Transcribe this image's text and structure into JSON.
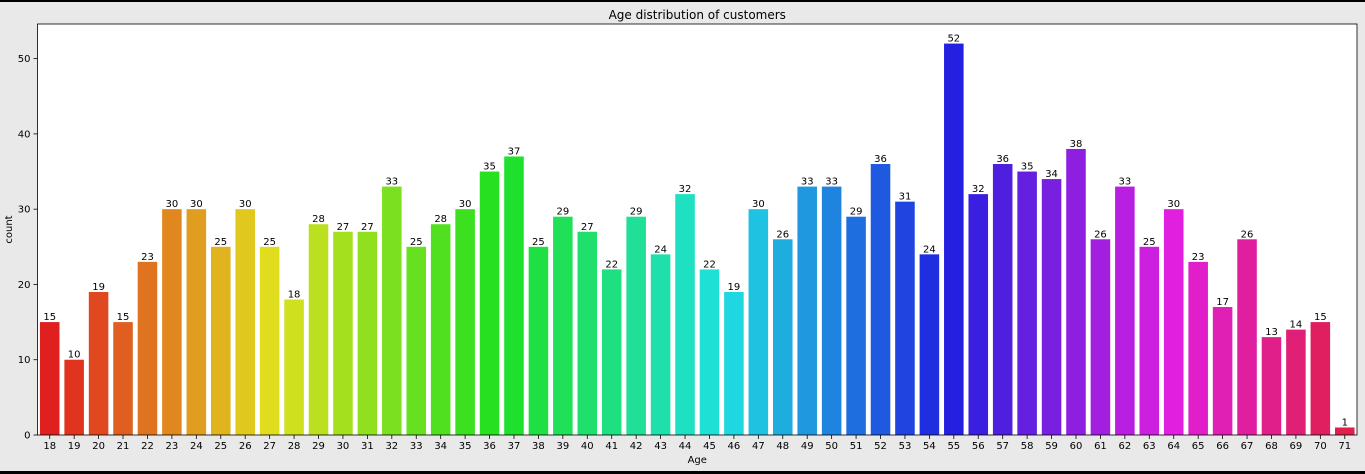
{
  "chart_data": {
    "type": "bar",
    "title": "Age distribution of customers",
    "xlabel": "Age",
    "ylabel": "count",
    "ylim": [
      0,
      54.6
    ],
    "yticks": [
      0,
      10,
      20,
      30,
      40,
      50
    ],
    "show_data_labels": true,
    "grid": false,
    "legend": "none",
    "categories": [
      "18",
      "19",
      "20",
      "21",
      "22",
      "23",
      "24",
      "25",
      "26",
      "27",
      "28",
      "29",
      "30",
      "31",
      "32",
      "33",
      "34",
      "35",
      "36",
      "37",
      "38",
      "39",
      "40",
      "41",
      "42",
      "43",
      "44",
      "45",
      "46",
      "47",
      "48",
      "49",
      "50",
      "51",
      "52",
      "53",
      "54",
      "55",
      "56",
      "57",
      "58",
      "59",
      "60",
      "61",
      "62",
      "63",
      "64",
      "65",
      "66",
      "67",
      "68",
      "69",
      "70",
      "71"
    ],
    "values": [
      15,
      10,
      19,
      15,
      23,
      30,
      30,
      25,
      30,
      25,
      18,
      28,
      27,
      27,
      33,
      25,
      28,
      30,
      35,
      37,
      25,
      29,
      27,
      22,
      29,
      24,
      32,
      22,
      19,
      30,
      26,
      33,
      33,
      29,
      36,
      31,
      24,
      52,
      32,
      36,
      35,
      34,
      38,
      26,
      33,
      25,
      30,
      23,
      17,
      26,
      13,
      14,
      15,
      1
    ],
    "colors": {
      "palette": "hsv",
      "background": "#e9e9e9",
      "plot_background": "#ffffff",
      "axis": "#000000",
      "text": "#000000"
    }
  }
}
